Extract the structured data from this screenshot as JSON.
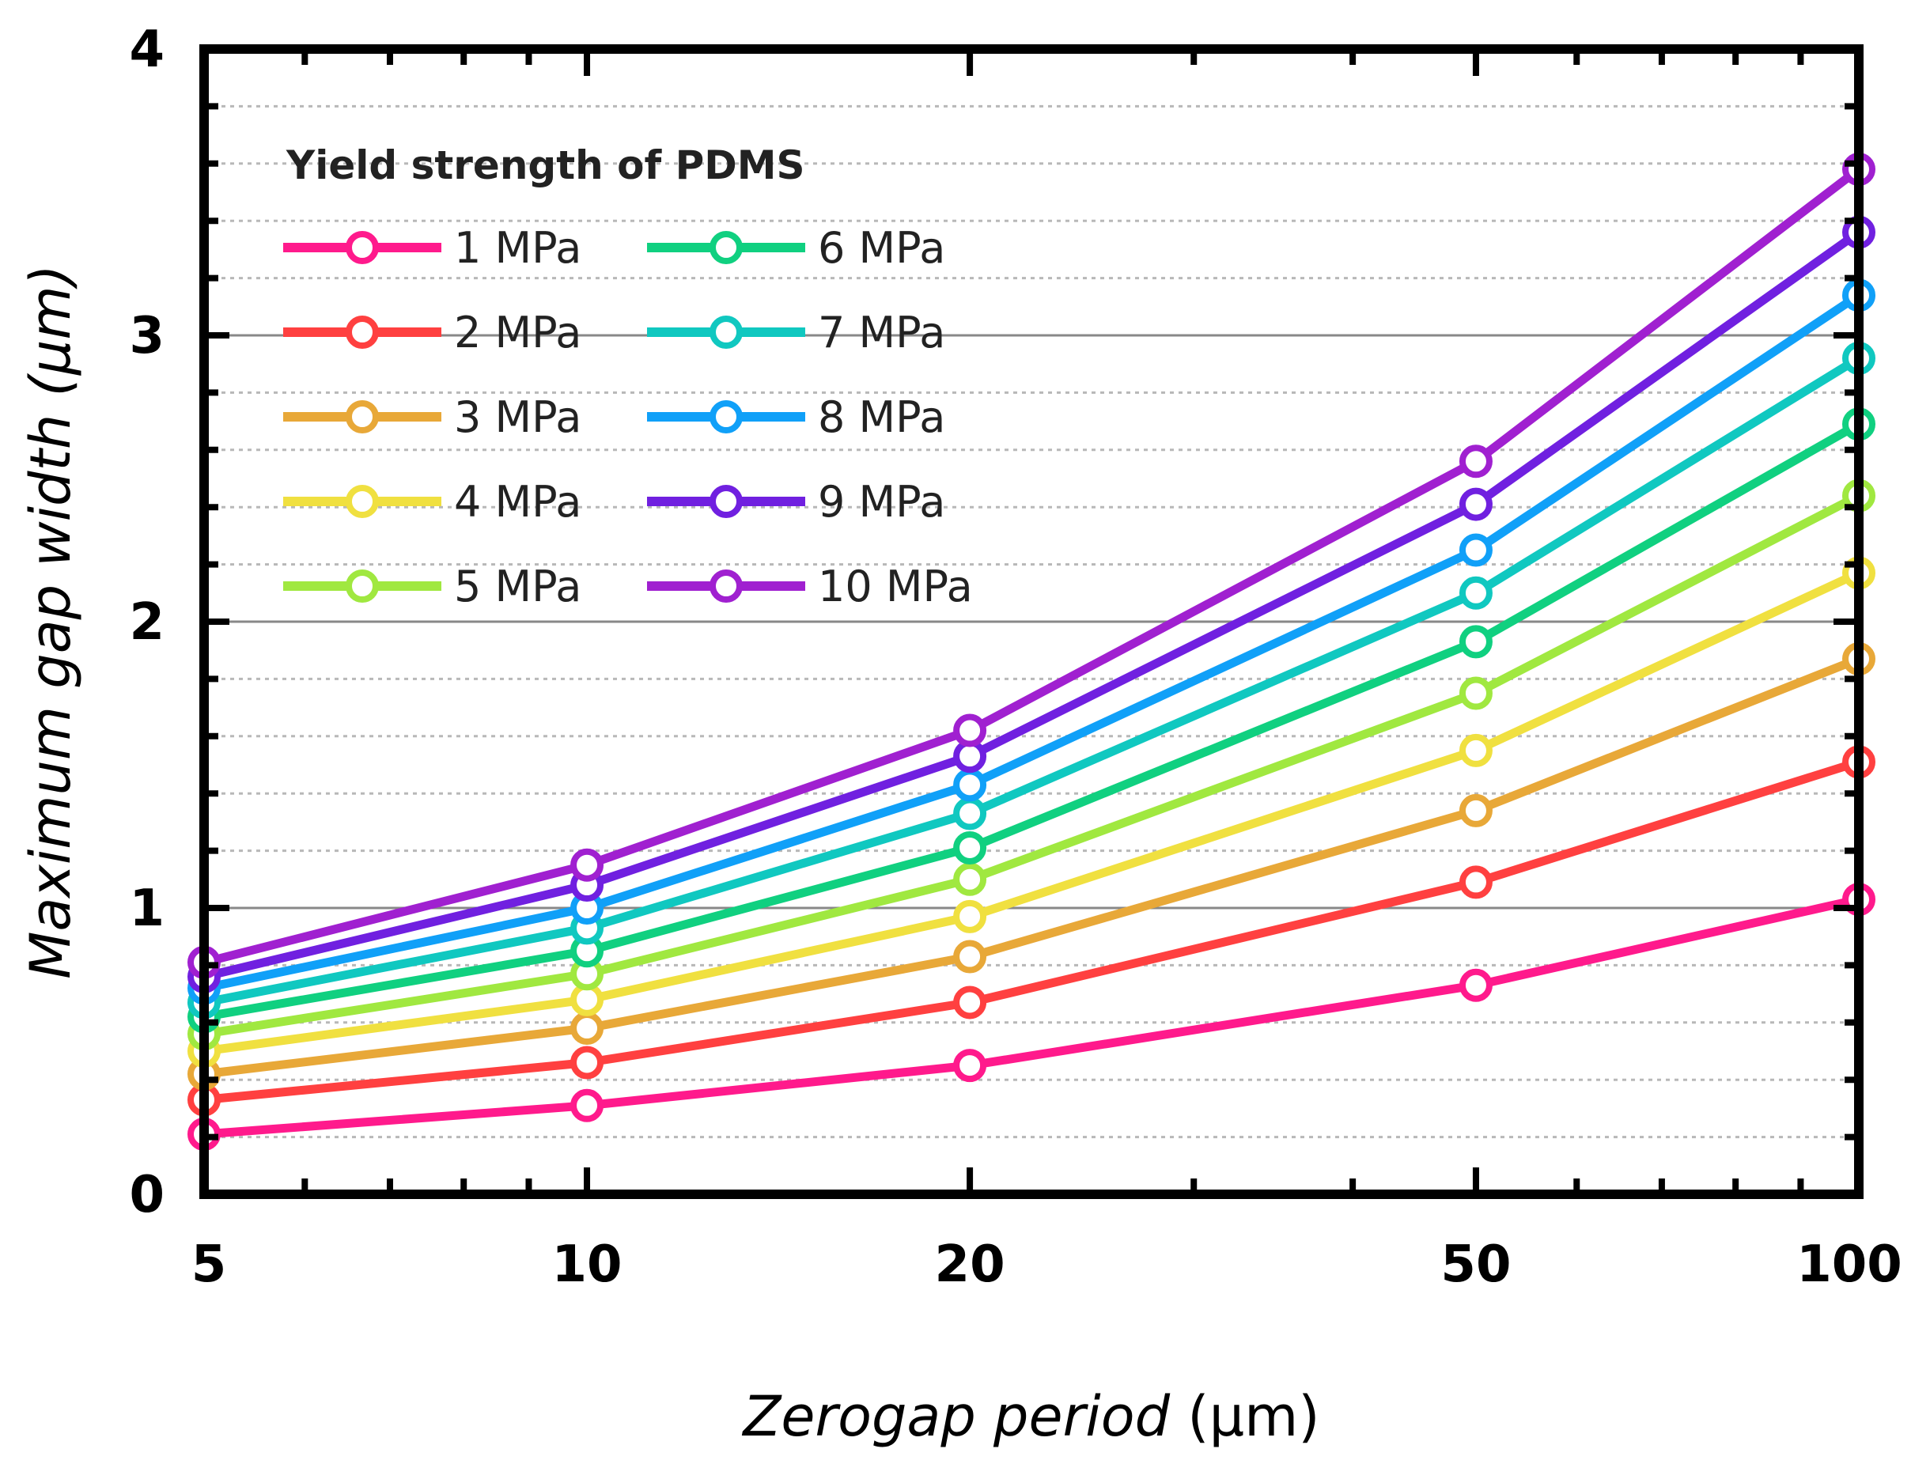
{
  "chart_data": {
    "type": "line",
    "xscale": "log",
    "x": [
      5,
      10,
      20,
      50,
      100
    ],
    "x_ticks": [
      "5",
      "10",
      "20",
      "50",
      "100"
    ],
    "y_ticks": [
      "0",
      "1",
      "2",
      "3",
      "4"
    ],
    "ylim": [
      0,
      4
    ],
    "xlim": [
      5,
      100
    ],
    "grid": "horizontal, major solid and minor dotted",
    "xlabel_italic": "Zerogap period",
    "xlabel_unit": " (μm)",
    "ylabel": "Maximum gap width (μm)",
    "legend_title": "Yield strength of PDMS",
    "legend_position": "top-left",
    "series": [
      {
        "name": "1 MPa",
        "color": "#ff1a8c",
        "values": [
          0.21,
          0.31,
          0.45,
          0.73,
          1.03
        ]
      },
      {
        "name": "2 MPa",
        "color": "#ff4040",
        "values": [
          0.33,
          0.46,
          0.67,
          1.09,
          1.51
        ]
      },
      {
        "name": "3 MPa",
        "color": "#e8a838",
        "values": [
          0.42,
          0.58,
          0.83,
          1.34,
          1.87
        ]
      },
      {
        "name": "4 MPa",
        "color": "#f0e040",
        "values": [
          0.5,
          0.68,
          0.97,
          1.55,
          2.17
        ]
      },
      {
        "name": "5 MPa",
        "color": "#a0e840",
        "values": [
          0.56,
          0.77,
          1.1,
          1.75,
          2.44
        ]
      },
      {
        "name": "6 MPa",
        "color": "#10d080",
        "values": [
          0.62,
          0.85,
          1.21,
          1.93,
          2.69
        ]
      },
      {
        "name": "7 MPa",
        "color": "#10c8c0",
        "values": [
          0.67,
          0.93,
          1.33,
          2.1,
          2.92
        ]
      },
      {
        "name": "8 MPa",
        "color": "#10a0f8",
        "values": [
          0.72,
          1.0,
          1.43,
          2.25,
          3.14
        ]
      },
      {
        "name": "9 MPa",
        "color": "#7020e0",
        "values": [
          0.76,
          1.08,
          1.53,
          2.41,
          3.36
        ]
      },
      {
        "name": "10 MPa",
        "color": "#a020d0",
        "values": [
          0.81,
          1.15,
          1.62,
          2.56,
          3.58
        ]
      }
    ]
  }
}
